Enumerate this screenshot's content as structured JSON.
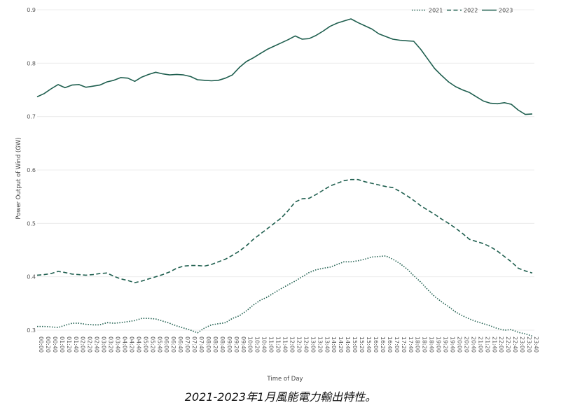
{
  "caption": "2021-2023年1月風能電力輸出特性。",
  "colors": {
    "line": "#1f5f4f",
    "grid": "#ececec",
    "text": "#555555"
  },
  "chart_data": {
    "type": "line",
    "title": "",
    "xlabel": "Time of Day",
    "ylabel": "Power Output of Wind (GW)",
    "ylim": [
      0.28,
      0.9
    ],
    "yticks": [
      0.3,
      0.4,
      0.5,
      0.6,
      0.7,
      0.8,
      0.9
    ],
    "ytick_labels": [
      "0.3",
      "0.4",
      "0.5",
      "0.6",
      "0.7",
      "0.8",
      "0.9"
    ],
    "grid": true,
    "legend_position": "top-right",
    "x": [
      "00:00",
      "00:20",
      "00:40",
      "01:00",
      "01:20",
      "01:40",
      "02:00",
      "02:20",
      "02:40",
      "03:00",
      "03:20",
      "03:40",
      "04:00",
      "04:20",
      "04:40",
      "05:00",
      "05:20",
      "05:40",
      "06:00",
      "06:20",
      "06:40",
      "07:00",
      "07:20",
      "07:40",
      "08:00",
      "08:20",
      "08:40",
      "09:00",
      "09:20",
      "09:40",
      "10:00",
      "10:20",
      "10:40",
      "11:00",
      "11:20",
      "11:40",
      "12:00",
      "12:20",
      "12:40",
      "13:00",
      "13:20",
      "13:40",
      "14:00",
      "14:20",
      "14:40",
      "15:00",
      "15:20",
      "15:40",
      "16:00",
      "16:20",
      "16:40",
      "17:00",
      "17:20",
      "17:40",
      "18:00",
      "18:20",
      "18:40",
      "19:00",
      "19:20",
      "19:40",
      "20:00",
      "20:20",
      "20:40",
      "21:00",
      "21:20",
      "21:40",
      "22:00",
      "22:20",
      "22:40",
      "23:00",
      "23:20",
      "23:40"
    ],
    "series": [
      {
        "name": "2021",
        "dash": "dotted",
        "values": [
          0.307,
          0.307,
          0.306,
          0.305,
          0.309,
          0.313,
          0.313,
          0.311,
          0.31,
          0.31,
          0.314,
          0.313,
          0.314,
          0.316,
          0.318,
          0.322,
          0.322,
          0.321,
          0.317,
          0.313,
          0.308,
          0.304,
          0.3,
          0.295,
          0.304,
          0.31,
          0.312,
          0.314,
          0.322,
          0.327,
          0.336,
          0.347,
          0.356,
          0.362,
          0.37,
          0.378,
          0.385,
          0.392,
          0.4,
          0.408,
          0.413,
          0.416,
          0.418,
          0.423,
          0.428,
          0.428,
          0.43,
          0.433,
          0.437,
          0.438,
          0.439,
          0.433,
          0.425,
          0.415,
          0.402,
          0.39,
          0.376,
          0.363,
          0.353,
          0.344,
          0.334,
          0.327,
          0.321,
          0.316,
          0.312,
          0.308,
          0.303,
          0.3,
          0.301,
          0.296,
          0.293,
          0.289
        ]
      },
      {
        "name": "2022",
        "dash": "dashed",
        "values": [
          0.403,
          0.404,
          0.406,
          0.41,
          0.408,
          0.405,
          0.404,
          0.403,
          0.404,
          0.406,
          0.407,
          0.401,
          0.396,
          0.393,
          0.389,
          0.392,
          0.396,
          0.4,
          0.404,
          0.409,
          0.416,
          0.42,
          0.421,
          0.421,
          0.42,
          0.423,
          0.428,
          0.433,
          0.44,
          0.448,
          0.458,
          0.47,
          0.48,
          0.49,
          0.5,
          0.51,
          0.524,
          0.54,
          0.546,
          0.547,
          0.554,
          0.562,
          0.57,
          0.575,
          0.58,
          0.582,
          0.582,
          0.578,
          0.575,
          0.572,
          0.569,
          0.567,
          0.56,
          0.552,
          0.543,
          0.533,
          0.525,
          0.517,
          0.508,
          0.5,
          0.491,
          0.481,
          0.47,
          0.466,
          0.462,
          0.456,
          0.448,
          0.438,
          0.428,
          0.416,
          0.411,
          0.407
        ]
      },
      {
        "name": "2023",
        "dash": "solid",
        "values": [
          0.737,
          0.743,
          0.752,
          0.76,
          0.754,
          0.759,
          0.76,
          0.755,
          0.757,
          0.759,
          0.765,
          0.768,
          0.773,
          0.772,
          0.766,
          0.774,
          0.779,
          0.783,
          0.78,
          0.778,
          0.779,
          0.778,
          0.775,
          0.769,
          0.768,
          0.767,
          0.768,
          0.772,
          0.778,
          0.792,
          0.803,
          0.81,
          0.818,
          0.826,
          0.832,
          0.838,
          0.844,
          0.851,
          0.845,
          0.846,
          0.852,
          0.86,
          0.869,
          0.875,
          0.879,
          0.883,
          0.876,
          0.87,
          0.864,
          0.855,
          0.85,
          0.845,
          0.843,
          0.842,
          0.841,
          0.826,
          0.808,
          0.79,
          0.777,
          0.765,
          0.756,
          0.75,
          0.745,
          0.737,
          0.729,
          0.725,
          0.724,
          0.726,
          0.723,
          0.712,
          0.704,
          0.705
        ]
      }
    ]
  }
}
